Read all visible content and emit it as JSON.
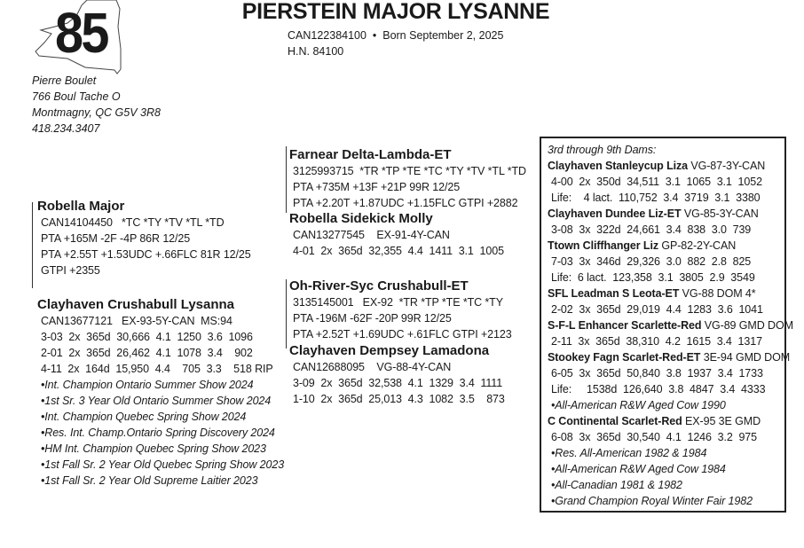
{
  "lot_number": "85",
  "title": "PIERSTEIN MAJOR LYSANNE",
  "registration_line": "CAN122384100  •  Born September 2, 2025",
  "herd_number": "H.N. 84100",
  "consignor": {
    "name": "Pierre Boulet",
    "address1": "766 Boul Tache O",
    "address2": "Montmagny, QC G5V 3R8",
    "phone": "418.234.3407"
  },
  "sire": {
    "name": "Robella Major",
    "lines": [
      "CAN14104450   *TC *TY *TV *TL *TD",
      "PTA +165M -2F -4P 86R 12/25",
      "PTA +2.55T +1.53UDC +.66FLC 81R 12/25",
      "GTPI +2355"
    ],
    "awards": []
  },
  "dam": {
    "name": "Clayhaven Crushabull Lysanna",
    "lines": [
      "CAN13677121   EX-93-5Y-CAN  MS:94",
      "3-03  2x  365d  30,666  4.1  1250  3.6  1096",
      "2-01  2x  365d  26,462  4.1  1078  3.4    902",
      "4-11  2x  164d  15,950  4.4    705  3.3    518 RIP"
    ],
    "awards": [
      "•Int. Champion Ontario Summer Show 2024",
      "•1st Sr. 3 Year Old Ontario Summer Show 2024",
      "•Int. Champion Quebec Spring Show 2024",
      "•Res. Int. Champ.Ontario Spring Discovery 2024",
      "•HM Int. Champion Quebec Spring Show 2023",
      "•1st Fall Sr. 2 Year Old Quebec Spring Show 2023",
      "•1st Fall Sr. 2 Year Old Supreme Laitier 2023"
    ]
  },
  "sire_sire": {
    "name": "Farnear Delta-Lambda-ET",
    "lines": [
      "3125993715  *TR *TP *TE *TC *TY *TV *TL *TD",
      "PTA +735M +13F +21P 99R 12/25",
      "PTA +2.20T +1.87UDC +1.15FLC GTPI +2882"
    ],
    "awards": []
  },
  "sire_dam": {
    "name": "Robella Sidekick Molly",
    "lines": [
      "CAN13277545    EX-91-4Y-CAN",
      "4-01  2x  365d  32,355  4.4  1411  3.1  1005"
    ],
    "awards": []
  },
  "dam_sire": {
    "name": "Oh-River-Syc Crushabull-ET",
    "lines": [
      "3135145001   EX-92  *TR *TP *TE *TC *TY",
      "PTA -196M -62F -20P 99R 12/25",
      "PTA +2.52T +1.69UDC +.61FLC GTPI +2123"
    ],
    "awards": []
  },
  "dam_dam": {
    "name": "Clayhaven Dempsey Lamadona",
    "lines": [
      "CAN12688095    VG-88-4Y-CAN",
      "3-09  2x  365d  32,538  4.1  1329  3.4  1111",
      "1-10  2x  365d  25,013  4.3  1082  3.5    873"
    ],
    "awards": []
  },
  "ancestors_box": {
    "heading": "3rd through 9th Dams:",
    "dams": [
      {
        "name": "Clayhaven Stanleycup Liza",
        "classification": " VG-87-3Y-CAN",
        "lines": [
          "4-00  2x  350d  34,511  3.1  1065  3.1  1052",
          "Life:    4 lact.  110,752  3.4  3719  3.1  3380"
        ],
        "awards": []
      },
      {
        "name": "Clayhaven Dundee Liz-ET",
        "classification": " VG-85-3Y-CAN",
        "lines": [
          "3-08  3x  322d  24,661  3.4  838  3.0  739"
        ],
        "awards": []
      },
      {
        "name": "Ttown Cliffhanger Liz",
        "classification": " GP-82-2Y-CAN",
        "lines": [
          "7-03  3x  346d  29,326  3.0  882  2.8  825",
          "Life:  6 lact.  123,358  3.1  3805  2.9  3549"
        ],
        "awards": []
      },
      {
        "name": "SFL Leadman S Leota-ET",
        "classification": " VG-88 DOM 4*",
        "lines": [
          "2-02  3x  365d  29,019  4.4  1283  3.6  1041"
        ],
        "awards": []
      },
      {
        "name": "S-F-L Enhancer Scarlette-Red",
        "classification": " VG-89 GMD DOM",
        "lines": [
          "2-11  3x  365d  38,310  4.2  1615  3.4  1317"
        ],
        "awards": []
      },
      {
        "name": "Stookey Fagn Scarlet-Red-ET",
        "classification": " 3E-94 GMD DOM",
        "lines": [
          "6-05  3x  365d  50,840  3.8  1937  3.4  1733",
          "Life:     1538d  126,640  3.8  4847  3.4  4333"
        ],
        "awards": [
          "•All-American R&W Aged Cow 1990"
        ]
      },
      {
        "name": "C Continental Scarlet-Red",
        "classification": " EX-95 3E GMD",
        "lines": [
          "6-08  3x  365d  30,540  4.1  1246  3.2  975"
        ],
        "awards": [
          "•Res. All-American 1982 & 1984",
          "•All-American R&W Aged Cow 1984",
          "•All-Canadian 1981 & 1982",
          "•Grand Champion Royal Winter Fair 1982"
        ]
      }
    ]
  }
}
